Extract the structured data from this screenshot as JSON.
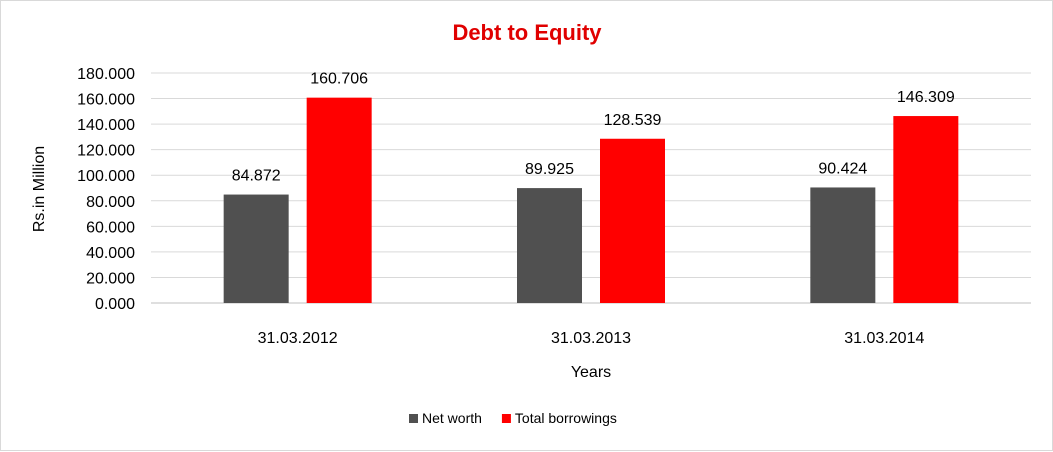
{
  "chart_data": {
    "type": "bar",
    "title": "Debt to Equity",
    "xlabel": "Years",
    "ylabel": "Rs.in Million",
    "categories": [
      "31.03.2012",
      "31.03.2013",
      "31.03.2014"
    ],
    "series": [
      {
        "name": "Net worth",
        "values": [
          84.872,
          89.925,
          90.424
        ],
        "value_labels": [
          "84.872",
          "89.925",
          "90.424"
        ],
        "color": "#505050"
      },
      {
        "name": "Total borrowings",
        "values": [
          160.706,
          128.539,
          146.309
        ],
        "value_labels": [
          "160.706",
          "128.539",
          "146.309"
        ],
        "color": "#ff0000"
      }
    ],
    "ylim": [
      0,
      180
    ],
    "yticks": [
      0,
      20,
      40,
      60,
      80,
      100,
      120,
      140,
      160,
      180
    ],
    "ytick_labels": [
      "0.000",
      "20.000",
      "40.000",
      "60.000",
      "80.000",
      "100.000",
      "120.000",
      "140.000",
      "160.000",
      "180.000"
    ],
    "grid": true,
    "legend": "bottom"
  },
  "colors": {
    "title": "#e00000",
    "grid": "#d9d9d9",
    "axis": "#bfbfbf"
  }
}
